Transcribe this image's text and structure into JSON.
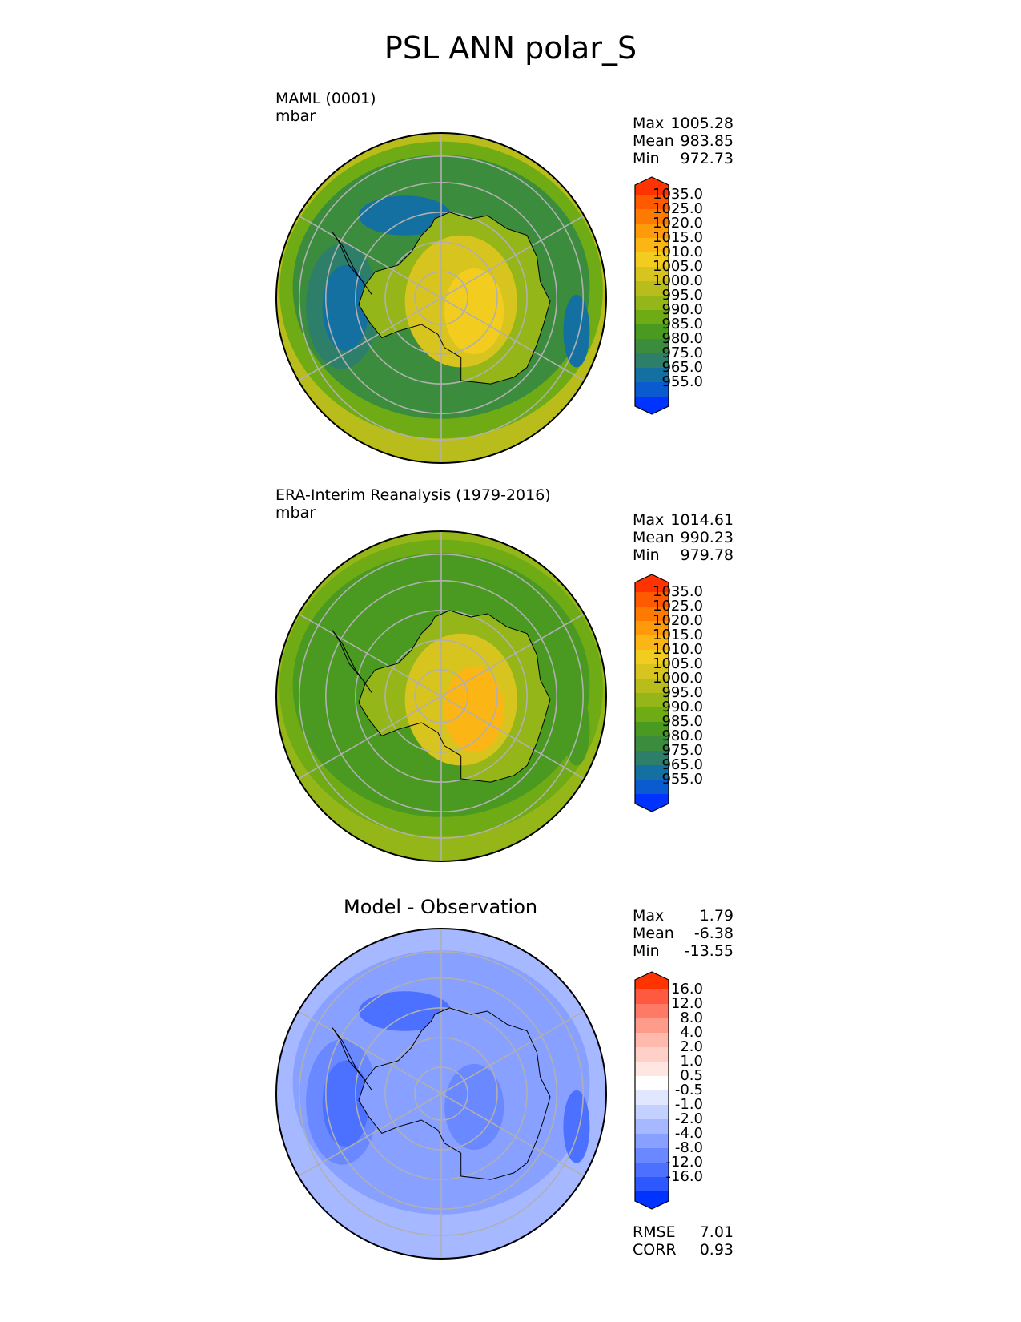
{
  "title": "PSL ANN polar_S",
  "chart_data": [
    {
      "type": "contour-map",
      "projection": "south-polar-stereographic",
      "name": "model",
      "title": "MAML (0001)",
      "units": "mbar",
      "stats": [
        {
          "label": "Max",
          "value": "1005.28"
        },
        {
          "label": "Mean",
          "value": "983.85"
        },
        {
          "label": "Min",
          "value": "972.73"
        }
      ],
      "colorbar": {
        "ticks": [
          "1035.0",
          "1025.0",
          "1020.0",
          "1015.0",
          "1010.0",
          "1005.0",
          "1000.0",
          "995.0",
          "990.0",
          "985.0",
          "980.0",
          "975.0",
          "965.0",
          "955.0"
        ],
        "colors": [
          "#ff3300",
          "#ff5a00",
          "#ff7a00",
          "#ff9b0a",
          "#fbb515",
          "#f2cc1f",
          "#d8c41e",
          "#b9bd1b",
          "#95b619",
          "#6fab14",
          "#4a9a22",
          "#3b8c3c",
          "#2e7f6a",
          "#1470a0",
          "#0b5bd0",
          "#0033ff"
        ]
      },
      "fields": {
        "ocean_color": "#3b8c3c",
        "rim_color": "#b9bd1b",
        "outer_ring_color": "#6fab14",
        "low_center_color": "#2e7f6a",
        "low_core_color": "#1470a0",
        "high_color": "#d8c41e",
        "high_core_color": "#f2cc1f",
        "plateau_color": "#95b619"
      }
    },
    {
      "type": "contour-map",
      "projection": "south-polar-stereographic",
      "name": "obs",
      "title": "ERA-Interim Reanalysis (1979-2016)",
      "units": "mbar",
      "stats": [
        {
          "label": "Max",
          "value": "1014.61"
        },
        {
          "label": "Mean",
          "value": "990.23"
        },
        {
          "label": "Min",
          "value": "979.78"
        }
      ],
      "colorbar": {
        "ticks": [
          "1035.0",
          "1025.0",
          "1020.0",
          "1015.0",
          "1010.0",
          "1005.0",
          "1000.0",
          "995.0",
          "990.0",
          "985.0",
          "980.0",
          "975.0",
          "965.0",
          "955.0"
        ],
        "colors": [
          "#ff3300",
          "#ff5a00",
          "#ff7a00",
          "#ff9b0a",
          "#fbb515",
          "#f2cc1f",
          "#d8c41e",
          "#b9bd1b",
          "#95b619",
          "#6fab14",
          "#4a9a22",
          "#3b8c3c",
          "#2e7f6a",
          "#1470a0",
          "#0b5bd0",
          "#0033ff"
        ]
      },
      "fields": {
        "ocean_color": "#4a9a22",
        "rim_color": "#95b619",
        "outer_ring_color": "#6fab14",
        "low_center_color": "#4a9a22",
        "low_core_color": "#4a9a22",
        "high_color": "#d8c41e",
        "high_core_color": "#fbb515",
        "plateau_color": "#95b619"
      }
    },
    {
      "type": "contour-map",
      "projection": "south-polar-stereographic",
      "name": "diff",
      "title": "Model - Observation",
      "stats": [
        {
          "label": "Max",
          "value": "1.79"
        },
        {
          "label": "Mean",
          "value": "-6.38"
        },
        {
          "label": "Min",
          "value": "-13.55"
        }
      ],
      "metrics": [
        {
          "label": "RMSE",
          "value": "7.01"
        },
        {
          "label": "CORR",
          "value": "0.93"
        }
      ],
      "colorbar": {
        "ticks": [
          "16.0",
          "12.0",
          "8.0",
          "4.0",
          "2.0",
          "1.0",
          "0.5",
          "-0.5",
          "-1.0",
          "-2.0",
          "-4.0",
          "-8.0",
          "-12.0",
          "-16.0"
        ],
        "colors": [
          "#ff3300",
          "#ff5a40",
          "#ff7a66",
          "#ff9b8a",
          "#ffb9ad",
          "#ffd0c8",
          "#ffe6e1",
          "#ffffff",
          "#e1e7ff",
          "#c4d0ff",
          "#a6b8ff",
          "#88a0ff",
          "#6a88ff",
          "#4c70ff",
          "#2e58ff",
          "#0033ff"
        ]
      },
      "fields": {
        "ocean_color": "#88a0ff",
        "rim_color": "#a6b8ff",
        "outer_ring_color": "#a6b8ff",
        "low_center_color": "#6a88ff",
        "low_core_color": "#4c70ff",
        "high_color": "#88a0ff",
        "high_core_color": "#6a88ff",
        "plateau_color": "#88a0ff"
      }
    }
  ]
}
